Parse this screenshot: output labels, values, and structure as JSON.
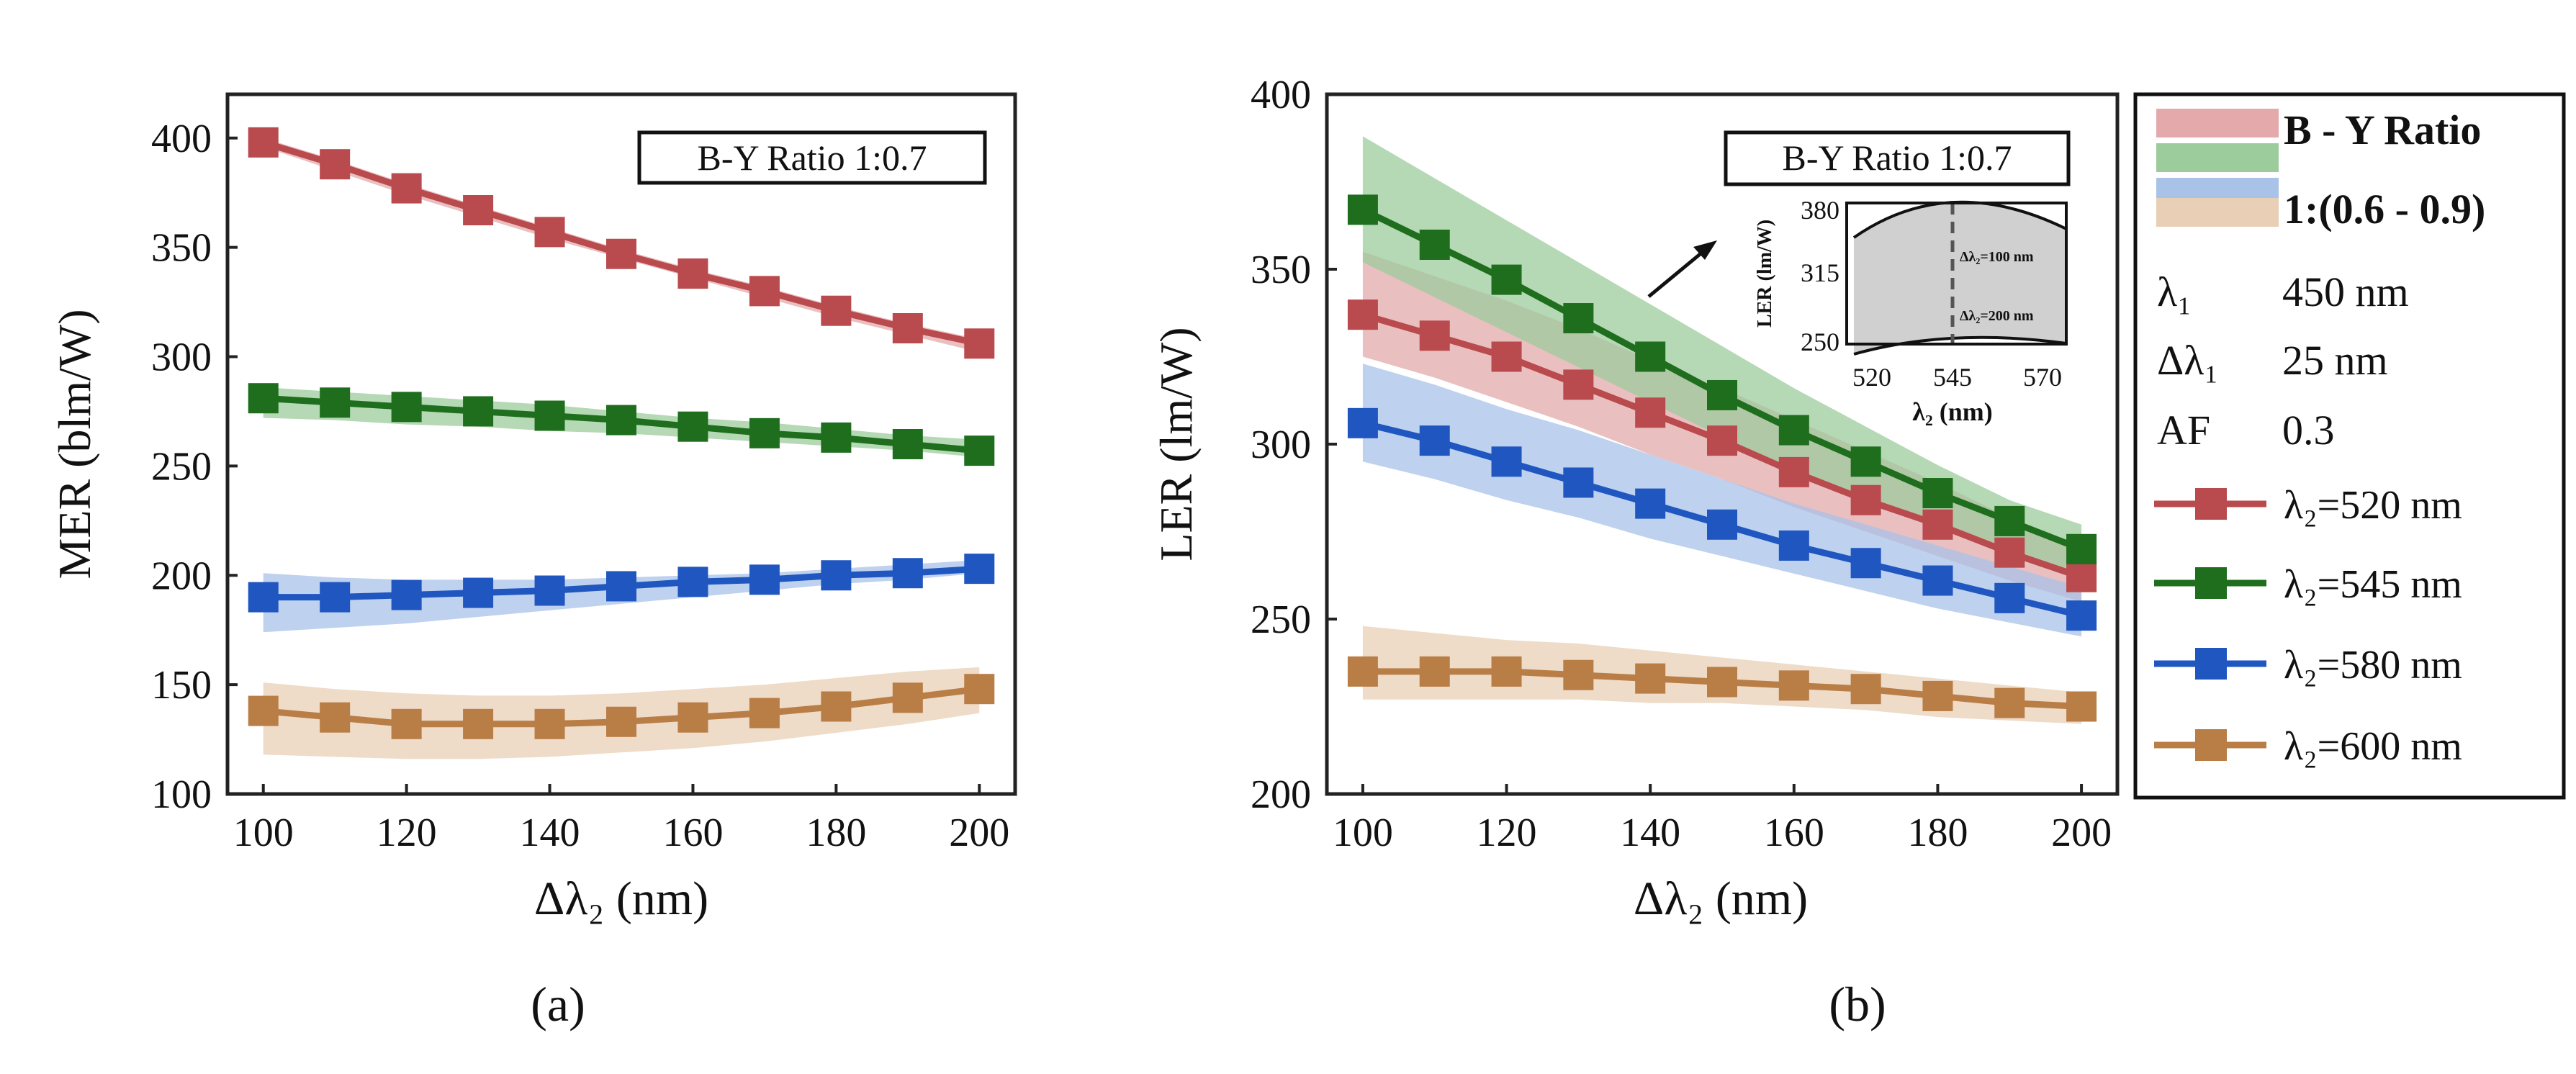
{
  "chart_data": [
    {
      "type": "line",
      "panel_label": "(a)",
      "xlabel": "Δλ₂ (nm)",
      "ylabel": "MER (blm/W)",
      "xlim": [
        95,
        205
      ],
      "ylim": [
        100,
        420
      ],
      "xticks": [
        100,
        120,
        140,
        160,
        180,
        200
      ],
      "yticks": [
        100,
        150,
        200,
        250,
        300,
        350,
        400
      ],
      "annotation": "B-Y Ratio  1:0.7",
      "x": [
        100,
        110,
        120,
        130,
        140,
        150,
        160,
        170,
        180,
        190,
        200
      ],
      "series": [
        {
          "name": "λ₂=520 nm",
          "color": "#b94a4d",
          "band_color": "#e3a9ab",
          "values": [
            398,
            388,
            377,
            367,
            357,
            347,
            338,
            330,
            321,
            313,
            306
          ],
          "band_low": [
            396,
            385,
            374,
            364,
            354,
            345,
            336,
            327,
            318,
            310,
            302
          ],
          "band_high": [
            400,
            390,
            379,
            369,
            359,
            349,
            340,
            332,
            323,
            315,
            308
          ]
        },
        {
          "name": "λ₂=545 nm",
          "color": "#1e6e1e",
          "band_color": "#9ccb9c",
          "values": [
            281,
            279,
            277,
            275,
            273,
            271,
            268,
            265,
            263,
            260,
            257
          ],
          "band_low": [
            272,
            271,
            269,
            268,
            266,
            265,
            263,
            261,
            259,
            257,
            254
          ],
          "band_high": [
            286,
            284,
            282,
            280,
            278,
            275,
            272,
            270,
            267,
            264,
            262
          ]
        },
        {
          "name": "λ₂=580 nm",
          "color": "#1f56c0",
          "band_color": "#a8c2e8",
          "values": [
            190,
            190,
            191,
            192,
            193,
            195,
            197,
            198,
            200,
            201,
            203
          ],
          "band_low": [
            174,
            176,
            178,
            181,
            184,
            187,
            190,
            193,
            196,
            198,
            201
          ],
          "band_high": [
            201,
            199,
            198,
            198,
            198,
            199,
            200,
            201,
            203,
            205,
            207
          ]
        },
        {
          "name": "λ₂=600 nm",
          "color": "#b97d46",
          "band_color": "#e8cfb6",
          "values": [
            138,
            135,
            132,
            132,
            132,
            133,
            135,
            137,
            140,
            144,
            148
          ],
          "band_low": [
            118,
            117,
            116,
            116,
            117,
            119,
            121,
            124,
            128,
            132,
            137
          ],
          "band_high": [
            151,
            148,
            146,
            145,
            145,
            146,
            148,
            150,
            153,
            156,
            158
          ]
        }
      ]
    },
    {
      "type": "line",
      "panel_label": "(b)",
      "xlabel": "Δλ₂ (nm)",
      "ylabel": "LER (lm/W)",
      "xlim": [
        95,
        205
      ],
      "ylim": [
        200,
        400
      ],
      "xticks": [
        100,
        120,
        140,
        160,
        180,
        200
      ],
      "yticks": [
        200,
        250,
        300,
        350,
        400
      ],
      "annotation": "B-Y Ratio  1:0.7",
      "x": [
        100,
        110,
        120,
        130,
        140,
        150,
        160,
        170,
        180,
        190,
        200
      ],
      "series": [
        {
          "name": "λ₂=520 nm",
          "color": "#b94a4d",
          "band_color": "#e3a9ab",
          "values": [
            337,
            331,
            325,
            317,
            309,
            301,
            292,
            284,
            277,
            269,
            262
          ],
          "band_low": [
            325,
            319,
            312,
            305,
            297,
            290,
            282,
            275,
            268,
            261,
            255
          ],
          "band_high": [
            355,
            348,
            341,
            333,
            324,
            316,
            307,
            298,
            289,
            279,
            270
          ]
        },
        {
          "name": "λ₂=545 nm",
          "color": "#1e6e1e",
          "band_color": "#9ccb9c",
          "values": [
            367,
            357,
            347,
            336,
            325,
            314,
            304,
            295,
            286,
            278,
            270
          ],
          "band_low": [
            352,
            342,
            332,
            322,
            312,
            302,
            293,
            284,
            276,
            268,
            261
          ],
          "band_high": [
            388,
            376,
            364,
            352,
            340,
            328,
            316,
            305,
            294,
            284,
            277
          ]
        },
        {
          "name": "λ₂=580 nm",
          "color": "#1f56c0",
          "band_color": "#a8c2e8",
          "values": [
            306,
            301,
            295,
            289,
            283,
            277,
            271,
            266,
            261,
            256,
            251
          ],
          "band_low": [
            295,
            290,
            284,
            279,
            273,
            268,
            263,
            258,
            253,
            249,
            245
          ],
          "band_high": [
            323,
            317,
            310,
            304,
            297,
            290,
            283,
            277,
            271,
            265,
            259
          ]
        },
        {
          "name": "λ₂=600 nm",
          "color": "#b97d46",
          "band_color": "#e8cfb6",
          "values": [
            235,
            235,
            235,
            234,
            233,
            232,
            231,
            230,
            228,
            226,
            225
          ],
          "band_low": [
            227,
            227,
            227,
            227,
            226,
            226,
            225,
            224,
            222,
            221,
            220
          ],
          "band_high": [
            248,
            246,
            244,
            243,
            241,
            239,
            237,
            235,
            233,
            231,
            229
          ]
        }
      ],
      "inset": {
        "ylabel": "LER (lm/W)",
        "xlabel": "λ₂ (nm)",
        "xticks": [
          "520",
          "545",
          "570"
        ],
        "yticks": [
          "380",
          "315",
          "250"
        ],
        "label_top": "Δλ₂=100 nm",
        "label_bottom": "Δλ₂=200 nm"
      }
    }
  ],
  "legend": {
    "band_title_line1": "B - Y Ratio",
    "band_title_line2": "1:(0.6 - 0.9)",
    "params": [
      {
        "symbol": "λ₁",
        "value": "450 nm"
      },
      {
        "symbol": "Δλ₁",
        "value": "25 nm"
      },
      {
        "symbol": "AF",
        "value": "0.3"
      }
    ],
    "entries": [
      "λ₂=520 nm",
      "λ₂=545 nm",
      "λ₂=580 nm",
      "λ₂=600 nm"
    ]
  }
}
